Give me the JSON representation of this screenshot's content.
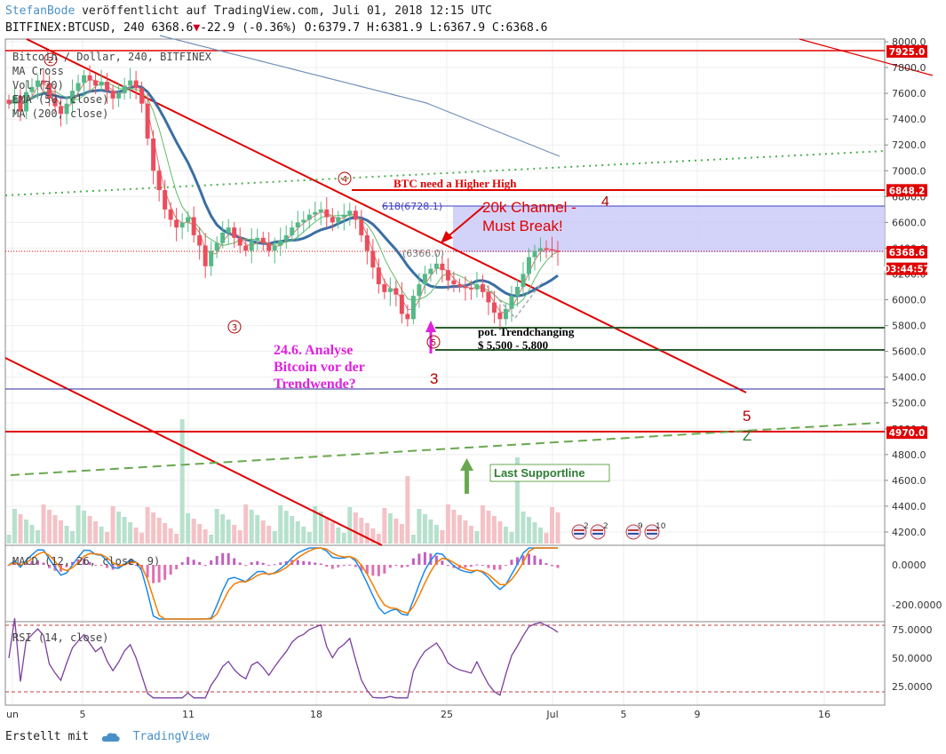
{
  "header": {
    "author": "StefanBode",
    "published": "veröffentlicht auf TradingView.com, Juli 01, 2018 12:15 UTC",
    "symbol": "BITFINEX:BTCUSD, 240 6368.6",
    "change_arrow": "▼",
    "change": "-22.9 (-0.36%)",
    "ohlc": "O:6379.7 H:6381.9 L:6367.9 C:6368.6"
  },
  "legend": {
    "line1": "Bitcoin / Dollar, 240, BITFINEX",
    "line2": "MA Cross",
    "line3": "Vol (20)",
    "line4": "EMA (50, close)",
    "line5": "MA (200, close)"
  },
  "footer": {
    "created": "Erstellt mit",
    "brand": "TradingView"
  },
  "colors": {
    "red": "#e00000",
    "green_dotted": "#4caf50",
    "green_dashed": "#6aa84f",
    "ema": "#3a6ea5",
    "ma200": "#6f8fb8",
    "magenta": "#e020e0",
    "channel_fill": "#c8c8f8",
    "candle_up": "#53b987",
    "candle_down": "#eb4d5c",
    "macd": "#1e88e5",
    "signal": "#f57c00",
    "rsi": "#7b3fa0"
  },
  "chart_data": [
    {
      "type": "candlestick",
      "name": "price",
      "y_axis_ticks": [
        8000.0,
        7800.0,
        7600.0,
        7400.0,
        7200.0,
        7000.0,
        6800.0,
        6600.0,
        6400.0,
        6200.0,
        6000.0,
        5800.0,
        5600.0,
        5400.0,
        5200.0,
        5000.0,
        4800.0,
        4600.0,
        4400.0,
        4200.0
      ],
      "ylim": [
        4100,
        8000
      ],
      "x_axis_ticks": [
        "un",
        "5",
        "11",
        "18",
        "25",
        "Jul",
        "5",
        "9",
        "16"
      ],
      "price_flags": [
        {
          "label": "7925.0",
          "value": 7925.0,
          "color": "#e00000"
        },
        {
          "label": "6848.2",
          "value": 6848.2,
          "color": "#e00000"
        },
        {
          "label": "6368.6",
          "value": 6368.6,
          "color": "#e00000"
        },
        {
          "label": "03:44:57",
          "value": 6240,
          "color": "#e00000"
        },
        {
          "label": "4970.0",
          "value": 4970.0,
          "color": "#e00000"
        }
      ],
      "closes": [
        7520,
        7580,
        7460,
        7610,
        7650,
        7700,
        7680,
        7560,
        7500,
        7440,
        7520,
        7620,
        7680,
        7740,
        7700,
        7660,
        7690,
        7620,
        7560,
        7600,
        7660,
        7700,
        7640,
        7520,
        7250,
        7000,
        6850,
        6700,
        6620,
        6560,
        6600,
        6640,
        6500,
        6420,
        6260,
        6380,
        6440,
        6520,
        6560,
        6480,
        6420,
        6380,
        6460,
        6480,
        6440,
        6380,
        6420,
        6460,
        6500,
        6560,
        6600,
        6620,
        6660,
        6680,
        6700,
        6640,
        6600,
        6640,
        6660,
        6690,
        6620,
        6500,
        6380,
        6250,
        6120,
        6060,
        6090,
        6040,
        5890,
        5850,
        6030,
        6120,
        6200,
        6240,
        6280,
        6230,
        6150,
        6120,
        6100,
        6090,
        6080,
        6120,
        6060,
        5980,
        5900,
        5850,
        5930,
        6030,
        6100,
        6200,
        6330,
        6380,
        6400,
        6390,
        6380,
        6368.6
      ],
      "annotations": [
        {
          "text": "BTC need a Higher High",
          "color": "#e00000"
        },
        {
          "text": "20k Channel -",
          "color": "#e00000"
        },
        {
          "text": "Must Break!",
          "color": "#e00000"
        },
        {
          "text": "4",
          "color": "#b00000"
        },
        {
          "text": "3",
          "color": "#b00000"
        },
        {
          "text": "5",
          "color": "#b00000"
        },
        {
          "text": "Z",
          "color": "#2e7d32"
        },
        {
          "text": "24.6. Analyse",
          "color": "#e020e0"
        },
        {
          "text": "Bitcoin vor der",
          "color": "#e020e0"
        },
        {
          "text": "Trendwende?",
          "color": "#e020e0"
        },
        {
          "text": "pot. Trendchanging",
          "color": "#000000"
        },
        {
          "text": "$ 5,500 - 5,800",
          "color": "#000000"
        },
        {
          "text": "Last Supportline",
          "color": "#2e7d32"
        },
        {
          "text": "618(6728.1)",
          "color": "#4040c0"
        },
        {
          "text": "(6366.0)",
          "color": "#777777"
        }
      ],
      "wave_labels": [
        "2",
        "4",
        "3",
        "5"
      ],
      "event_icons": [
        "2",
        "2",
        "9",
        "10"
      ]
    },
    {
      "type": "line",
      "name": "MACD (12, 26, close, 9)",
      "y_axis_ticks": [
        0.0,
        -200.0
      ],
      "y_axis_labels": [
        "0.0000",
        "-200.0000"
      ]
    },
    {
      "type": "line",
      "name": "RSI (14, close)",
      "y_axis_ticks": [
        75.0,
        50.0,
        25.0
      ],
      "y_axis_labels": [
        "75.0000",
        "50.0000",
        "25.0000"
      ],
      "ylim": [
        10,
        90
      ]
    }
  ]
}
